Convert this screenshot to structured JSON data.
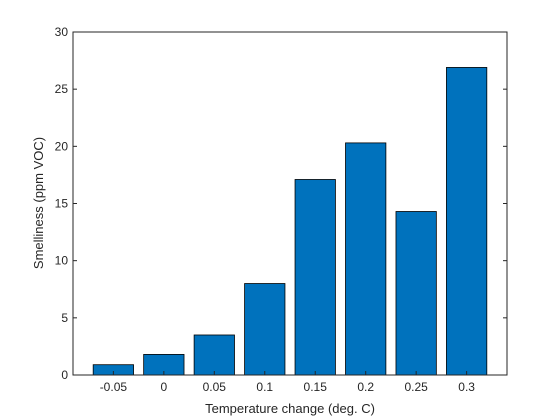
{
  "chart_data": {
    "type": "bar",
    "xlabel": "Temperature change (deg. C)",
    "ylabel": "Smelliness (ppm VOC)",
    "categories": [
      "-0.05",
      "0",
      "0.05",
      "0.1",
      "0.15",
      "0.2",
      "0.25",
      "0.3"
    ],
    "values": [
      0.9,
      1.8,
      3.5,
      8.0,
      17.1,
      20.3,
      14.3,
      26.9
    ],
    "ylim": [
      0,
      30
    ],
    "yticks": [
      "0",
      "5",
      "10",
      "15",
      "20",
      "25",
      "30"
    ],
    "grid": false,
    "bar_color": "#0072BD",
    "bar_edge_color": "#000000"
  }
}
